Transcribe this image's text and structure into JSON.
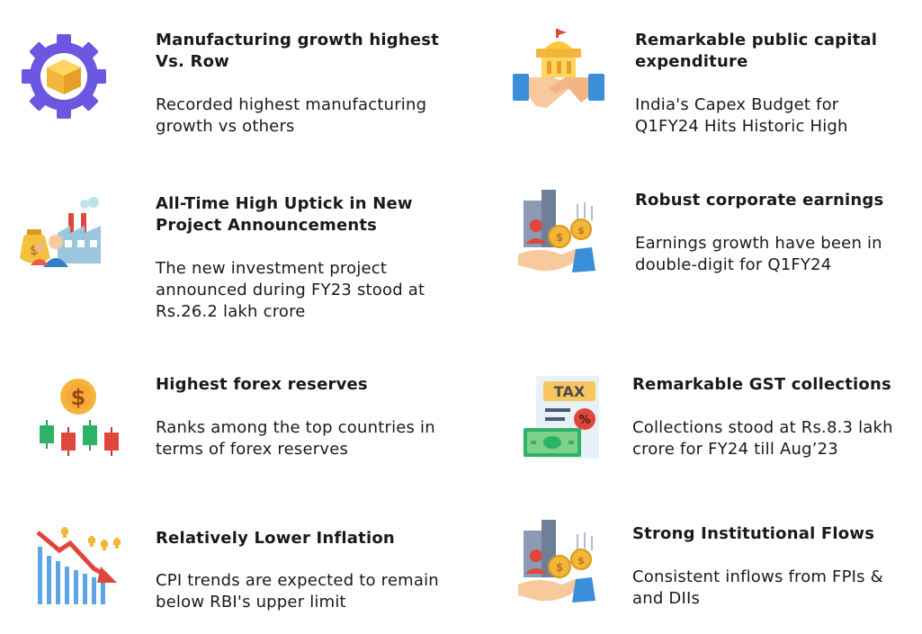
{
  "items": [
    {
      "icon": "gear-box-icon",
      "title": "Manufacturing growth highest Vs. Row",
      "desc": "Recorded highest manufacturing growth vs others"
    },
    {
      "icon": "handshake-building-icon",
      "title": "Remarkable public capital expenditure",
      "desc": "India's Capex Budget for Q1FY24 Hits Historic High"
    },
    {
      "icon": "money-factory-icon",
      "title": "All-Time High Uptick in New Project Announcements",
      "desc": "The new investment project announced during FY23 stood at Rs.26.2 lakh crore"
    },
    {
      "icon": "hand-coins-city-icon",
      "title": "Robust corporate earnings",
      "desc": "Earnings growth have been in double-digit for Q1FY24"
    },
    {
      "icon": "dollar-candlestick-icon",
      "title": "Highest forex reserves",
      "desc": "Ranks among the top countries in terms of forex reserves"
    },
    {
      "icon": "tax-document-icon",
      "title": "Remarkable GST collections",
      "desc": "Collections stood at Rs.8.3 lakh crore for FY24 till Aug’23"
    },
    {
      "icon": "declining-bars-icon",
      "title": "Relatively Lower Inflation",
      "desc": "CPI trends are expected to remain below RBI's upper limit"
    },
    {
      "icon": "hand-coins-city-icon",
      "title": "Strong Institutional Flows",
      "desc": "Consistent inflows from FPIs & and DIIs"
    }
  ],
  "icon_labels": {
    "tax": "TAX",
    "percent": "%",
    "dollar": "$"
  }
}
